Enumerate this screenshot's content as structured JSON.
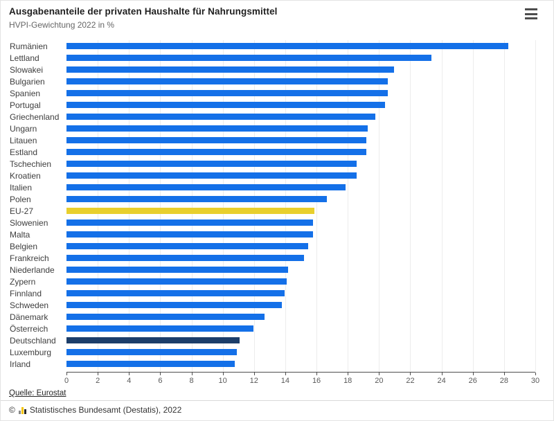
{
  "chart_data": {
    "type": "bar",
    "orientation": "horizontal",
    "title": "Ausgabenanteile der privaten Haushalte für Nahrungsmittel",
    "subtitle": "HVPI-Gewichtung 2022 in %",
    "xlabel": "",
    "ylabel": "",
    "xlim": [
      0,
      30
    ],
    "x_ticks": [
      0,
      2,
      4,
      6,
      8,
      10,
      12,
      14,
      16,
      18,
      20,
      22,
      24,
      26,
      28,
      30
    ],
    "grid": true,
    "legend": false,
    "categories": [
      "Rumänien",
      "Lettland",
      "Slowakei",
      "Bulgarien",
      "Spanien",
      "Portugal",
      "Griechenland",
      "Ungarn",
      "Litauen",
      "Estland",
      "Tschechien",
      "Kroatien",
      "Italien",
      "Polen",
      "EU-27",
      "Slowenien",
      "Malta",
      "Belgien",
      "Frankreich",
      "Niederlande",
      "Zypern",
      "Finnland",
      "Schweden",
      "Dänemark",
      "Österreich",
      "Deutschland",
      "Luxemburg",
      "Irland"
    ],
    "values": [
      28.3,
      23.4,
      21.0,
      20.6,
      20.6,
      20.4,
      19.8,
      19.3,
      19.2,
      19.2,
      18.6,
      18.6,
      17.9,
      16.7,
      15.9,
      15.8,
      15.8,
      15.5,
      15.2,
      14.2,
      14.1,
      14.0,
      13.8,
      12.7,
      12.0,
      11.1,
      10.9,
      10.8
    ],
    "colors": {
      "bar_default": "#1470e8",
      "grid": "#ececec",
      "axis": "#4d4d4d"
    },
    "highlights": {
      "EU-27": "#e8cf2d",
      "Deutschland": "#1c3e6a"
    }
  },
  "header": {
    "menu_icon": "hamburger-menu-icon"
  },
  "footer": {
    "source_label": "Quelle: Eurostat",
    "copyright_symbol": "©",
    "copyright_text": "Statistisches Bundesamt (Destatis), 2022",
    "logo_icon": "destatis-bar-chart-logo"
  }
}
